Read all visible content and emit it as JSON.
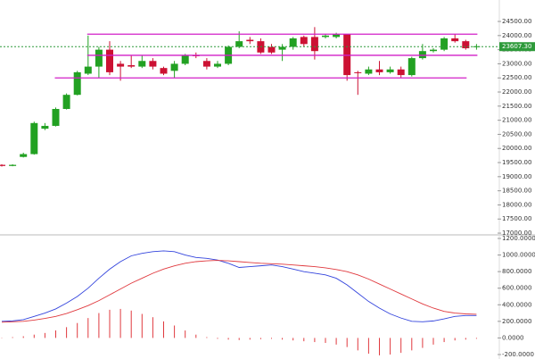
{
  "chart_data": [
    {
      "type": "candlestick",
      "open": [
        19420,
        19380,
        19700,
        19800,
        20700,
        20800,
        21400,
        21900,
        22650,
        22900,
        23500,
        23000,
        22950,
        22900,
        23100,
        22850,
        22750,
        23000,
        23300,
        23100,
        22900,
        23000,
        23600,
        23850,
        23800,
        23600,
        23500,
        23600,
        23950,
        23950,
        23950,
        23950,
        24050,
        22700,
        22650,
        22800,
        22700,
        22800,
        22600,
        23200,
        23450,
        23500,
        23900,
        23800,
        23600
      ],
      "high": [
        19440,
        19440,
        19850,
        20950,
        20900,
        21450,
        21950,
        22750,
        24000,
        23600,
        23800,
        23100,
        23300,
        23300,
        23200,
        22900,
        23100,
        23350,
        23400,
        23200,
        23100,
        23650,
        24150,
        23950,
        23900,
        23700,
        23700,
        23950,
        24000,
        24300,
        24050,
        24100,
        24050,
        22750,
        22900,
        23100,
        22900,
        22900,
        23250,
        23700,
        23550,
        23950,
        24050,
        23850,
        23700
      ],
      "low": [
        19360,
        19370,
        19680,
        19780,
        20650,
        20780,
        21380,
        21880,
        22600,
        22500,
        22600,
        22400,
        22850,
        22850,
        22800,
        22600,
        22500,
        22950,
        23200,
        22800,
        22850,
        22950,
        23550,
        23700,
        23350,
        23350,
        23100,
        23500,
        23600,
        23150,
        23900,
        23900,
        22400,
        21900,
        22600,
        22600,
        22650,
        22500,
        22550,
        23150,
        23400,
        23450,
        23750,
        23500,
        23500
      ],
      "close": [
        19380,
        19420,
        19800,
        20900,
        20800,
        21400,
        21900,
        22700,
        22900,
        23500,
        22700,
        22900,
        22900,
        23100,
        22900,
        22650,
        23000,
        23300,
        23280,
        22900,
        23000,
        23600,
        23800,
        23800,
        23400,
        23400,
        23600,
        23900,
        23700,
        23450,
        24000,
        24050,
        22600,
        22680,
        22800,
        22700,
        22800,
        22600,
        23200,
        23450,
        23500,
        23900,
        23800,
        23550,
        23620
      ],
      "up_color": "#22a122",
      "down_color": "#cc1133",
      "lines": [
        {
          "value": 24050,
          "from": 8,
          "to": 44,
          "color": "#d21fc8"
        },
        {
          "value": 23300,
          "from": 8,
          "to": 44,
          "color": "#d21fc8"
        },
        {
          "value": 22500,
          "from": 5,
          "to": 43,
          "color": "#d21fc8"
        }
      ],
      "last_price": {
        "value": 23607.3,
        "label": "23607.30",
        "color": "#2e9a3a"
      },
      "ylim": [
        16970,
        25260
      ],
      "yticks": [
        {
          "value": 24500,
          "label": "24500.00"
        },
        {
          "value": 24000,
          "label": "24000.00"
        },
        {
          "value": 23500,
          "label": "23500.00"
        },
        {
          "value": 23000,
          "label": "23000.00"
        },
        {
          "value": 22500,
          "label": "22500.00"
        },
        {
          "value": 22000,
          "label": "22000.00"
        },
        {
          "value": 21500,
          "label": "21500.00"
        },
        {
          "value": 21000,
          "label": "21000.00"
        },
        {
          "value": 20500,
          "label": "20500.00"
        },
        {
          "value": 20000,
          "label": "20000.00"
        },
        {
          "value": 19500,
          "label": "19500.00"
        },
        {
          "value": 19000,
          "label": "19000.00"
        },
        {
          "value": 18500,
          "label": "18500.00"
        },
        {
          "value": 18000,
          "label": "18000.00"
        },
        {
          "value": 17500,
          "label": "17500.00"
        },
        {
          "value": 17000,
          "label": "17000.00"
        }
      ]
    },
    {
      "type": "macd",
      "series": [
        {
          "color": "#3344dd",
          "values": [
            200,
            205,
            220,
            260,
            300,
            350,
            420,
            500,
            600,
            720,
            830,
            920,
            990,
            1020,
            1040,
            1050,
            1040,
            1000,
            970,
            960,
            940,
            900,
            850,
            860,
            870,
            880,
            860,
            830,
            800,
            780,
            760,
            720,
            640,
            540,
            440,
            360,
            290,
            240,
            200,
            195,
            205,
            230,
            260,
            270,
            270
          ]
        },
        {
          "color": "#e0393e",
          "values": [
            190,
            195,
            200,
            215,
            235,
            260,
            295,
            340,
            390,
            450,
            520,
            590,
            660,
            720,
            780,
            830,
            870,
            900,
            920,
            930,
            935,
            930,
            920,
            910,
            900,
            895,
            890,
            880,
            870,
            860,
            845,
            825,
            800,
            760,
            710,
            650,
            590,
            530,
            470,
            410,
            360,
            320,
            300,
            290,
            285
          ]
        }
      ],
      "histogram": {
        "color": "#e0393e",
        "values": [
          5,
          10,
          20,
          40,
          60,
          90,
          130,
          180,
          240,
          300,
          340,
          350,
          330,
          290,
          250,
          200,
          150,
          90,
          40,
          10,
          -10,
          -20,
          -25,
          -20,
          -15,
          -10,
          -20,
          -30,
          -40,
          -50,
          -60,
          -80,
          -110,
          -150,
          -190,
          -210,
          -200,
          -180,
          -150,
          -120,
          -80,
          -50,
          -30,
          -20,
          -10
        ]
      },
      "ylim": [
        -254,
        1243
      ],
      "yticks": [
        {
          "value": 1200,
          "label": "1200.0000"
        },
        {
          "value": 1000,
          "label": "1000.0000"
        },
        {
          "value": 800,
          "label": "800.0000"
        },
        {
          "value": 600,
          "label": "600.0000"
        },
        {
          "value": 400,
          "label": "400.0000"
        },
        {
          "value": 200,
          "label": "200.0000"
        },
        {
          "value": 0,
          "label": "0.0000"
        },
        {
          "value": -200,
          "label": "-200.0000"
        }
      ]
    }
  ]
}
